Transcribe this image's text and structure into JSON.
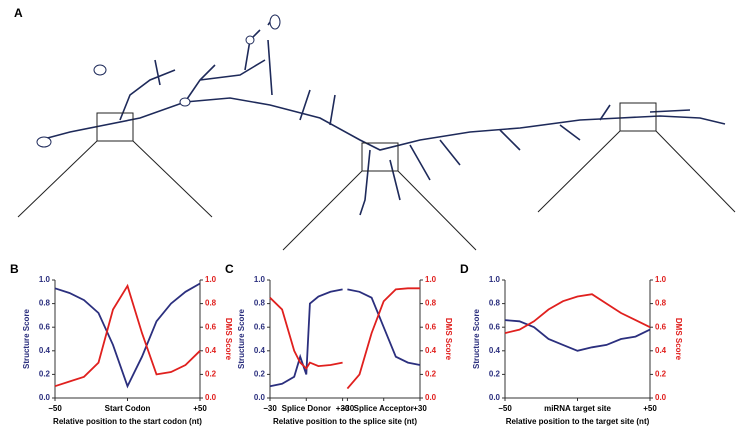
{
  "panel_a": {
    "label": "A"
  },
  "chart_data": [
    {
      "type": "line",
      "panel": "B",
      "x": [
        -50,
        -40,
        -30,
        -20,
        -10,
        0,
        10,
        20,
        30,
        40,
        50
      ],
      "series": [
        {
          "name": "Structure Score",
          "color": "#2b2f7e",
          "values": [
            0.93,
            0.89,
            0.83,
            0.72,
            0.45,
            0.1,
            0.35,
            0.65,
            0.8,
            0.9,
            0.97
          ]
        },
        {
          "name": "DMS Score",
          "color": "#e0201e",
          "axis": "y2",
          "values": [
            0.1,
            0.14,
            0.18,
            0.3,
            0.75,
            0.95,
            0.55,
            0.2,
            0.22,
            0.28,
            0.4
          ]
        }
      ],
      "xlim": [
        -50,
        50
      ],
      "xticks": [
        {
          "value": -50,
          "label": "−50"
        },
        {
          "value": 0,
          "label": "Start Codon"
        },
        {
          "value": 50,
          "label": "+50"
        }
      ],
      "ylim": [
        0,
        1
      ],
      "yticks": [
        {
          "value": 0,
          "label": "0.0"
        },
        0.2,
        0.4,
        0.6,
        0.8,
        {
          "value": 1,
          "label": "1.0"
        }
      ],
      "y2lim": [
        0,
        1
      ],
      "y2ticks": [
        {
          "value": 0,
          "label": "0.0"
        },
        0.2,
        0.4,
        0.6,
        0.8,
        {
          "value": 1,
          "label": "1.0"
        }
      ],
      "xlabel": "Relative position to the start codon (nt)",
      "ylabel": "Structure Score",
      "y2label": "DMS Score"
    },
    {
      "type": "line",
      "panel": "C",
      "x": [
        0,
        10,
        20,
        25,
        30,
        33,
        40,
        50,
        60,
        62,
        64,
        74,
        84,
        94,
        104,
        114,
        124
      ],
      "series": [
        {
          "name": "Structure Score",
          "color": "#2b2f7e",
          "values": [
            0.1,
            0.12,
            0.18,
            0.35,
            0.2,
            0.8,
            0.86,
            0.9,
            0.92,
            null,
            0.92,
            0.9,
            0.85,
            0.6,
            0.35,
            0.3,
            0.28
          ]
        },
        {
          "name": "DMS Score",
          "color": "#e0201e",
          "axis": "y2",
          "values": [
            0.85,
            0.75,
            0.4,
            0.3,
            0.25,
            0.3,
            0.27,
            0.28,
            0.3,
            null,
            0.08,
            0.2,
            0.55,
            0.82,
            0.92,
            0.93,
            0.93
          ]
        }
      ],
      "xlim": [
        0,
        124
      ],
      "xticks": [
        {
          "value": 0,
          "label": "−30"
        },
        {
          "value": 30,
          "label": "Splice Donor"
        },
        {
          "value": 60,
          "label": "+30"
        },
        {
          "value": 64,
          "label": "−30"
        },
        {
          "value": 94,
          "label": "Splice Acceptor"
        },
        {
          "value": 124,
          "label": "+30"
        }
      ],
      "ylim": [
        0,
        1
      ],
      "yticks": [
        {
          "value": 0,
          "label": "0.0"
        },
        0.2,
        0.4,
        0.6,
        0.8,
        {
          "value": 1,
          "label": "1.0"
        }
      ],
      "y2lim": [
        0,
        1
      ],
      "y2ticks": [
        {
          "value": 0,
          "label": "0.0"
        },
        0.2,
        0.4,
        0.6,
        0.8,
        {
          "value": 1,
          "label": "1.0"
        }
      ],
      "xlabel": "Relative position to the splice site (nt)",
      "ylabel": "Structure Score",
      "y2label": "DMS Score"
    },
    {
      "type": "line",
      "panel": "D",
      "x": [
        -50,
        -40,
        -30,
        -20,
        -10,
        0,
        10,
        20,
        30,
        40,
        50
      ],
      "series": [
        {
          "name": "Structure Score",
          "color": "#2b2f7e",
          "values": [
            0.66,
            0.65,
            0.6,
            0.5,
            0.45,
            0.4,
            0.43,
            0.45,
            0.5,
            0.52,
            0.58
          ]
        },
        {
          "name": "DMS Score",
          "color": "#e0201e",
          "axis": "y2",
          "values": [
            0.55,
            0.58,
            0.65,
            0.75,
            0.82,
            0.86,
            0.88,
            0.8,
            0.72,
            0.66,
            0.6
          ]
        }
      ],
      "xlim": [
        -50,
        50
      ],
      "xticks": [
        {
          "value": -50,
          "label": "−50"
        },
        {
          "value": 0,
          "label": "miRNA target site"
        },
        {
          "value": 50,
          "label": "+50"
        }
      ],
      "ylim": [
        0,
        1
      ],
      "yticks": [
        {
          "value": 0,
          "label": "0.0"
        },
        0.2,
        0.4,
        0.6,
        0.8,
        {
          "value": 1,
          "label": "1.0"
        }
      ],
      "y2lim": [
        0,
        1
      ],
      "y2ticks": [
        {
          "value": 0,
          "label": "0.0"
        },
        0.2,
        0.4,
        0.6,
        0.8,
        {
          "value": 1,
          "label": "1.0"
        }
      ],
      "xlabel": "Relative position to the target site (nt)",
      "ylabel": "Structure Score",
      "y2label": "DMS Score"
    }
  ]
}
